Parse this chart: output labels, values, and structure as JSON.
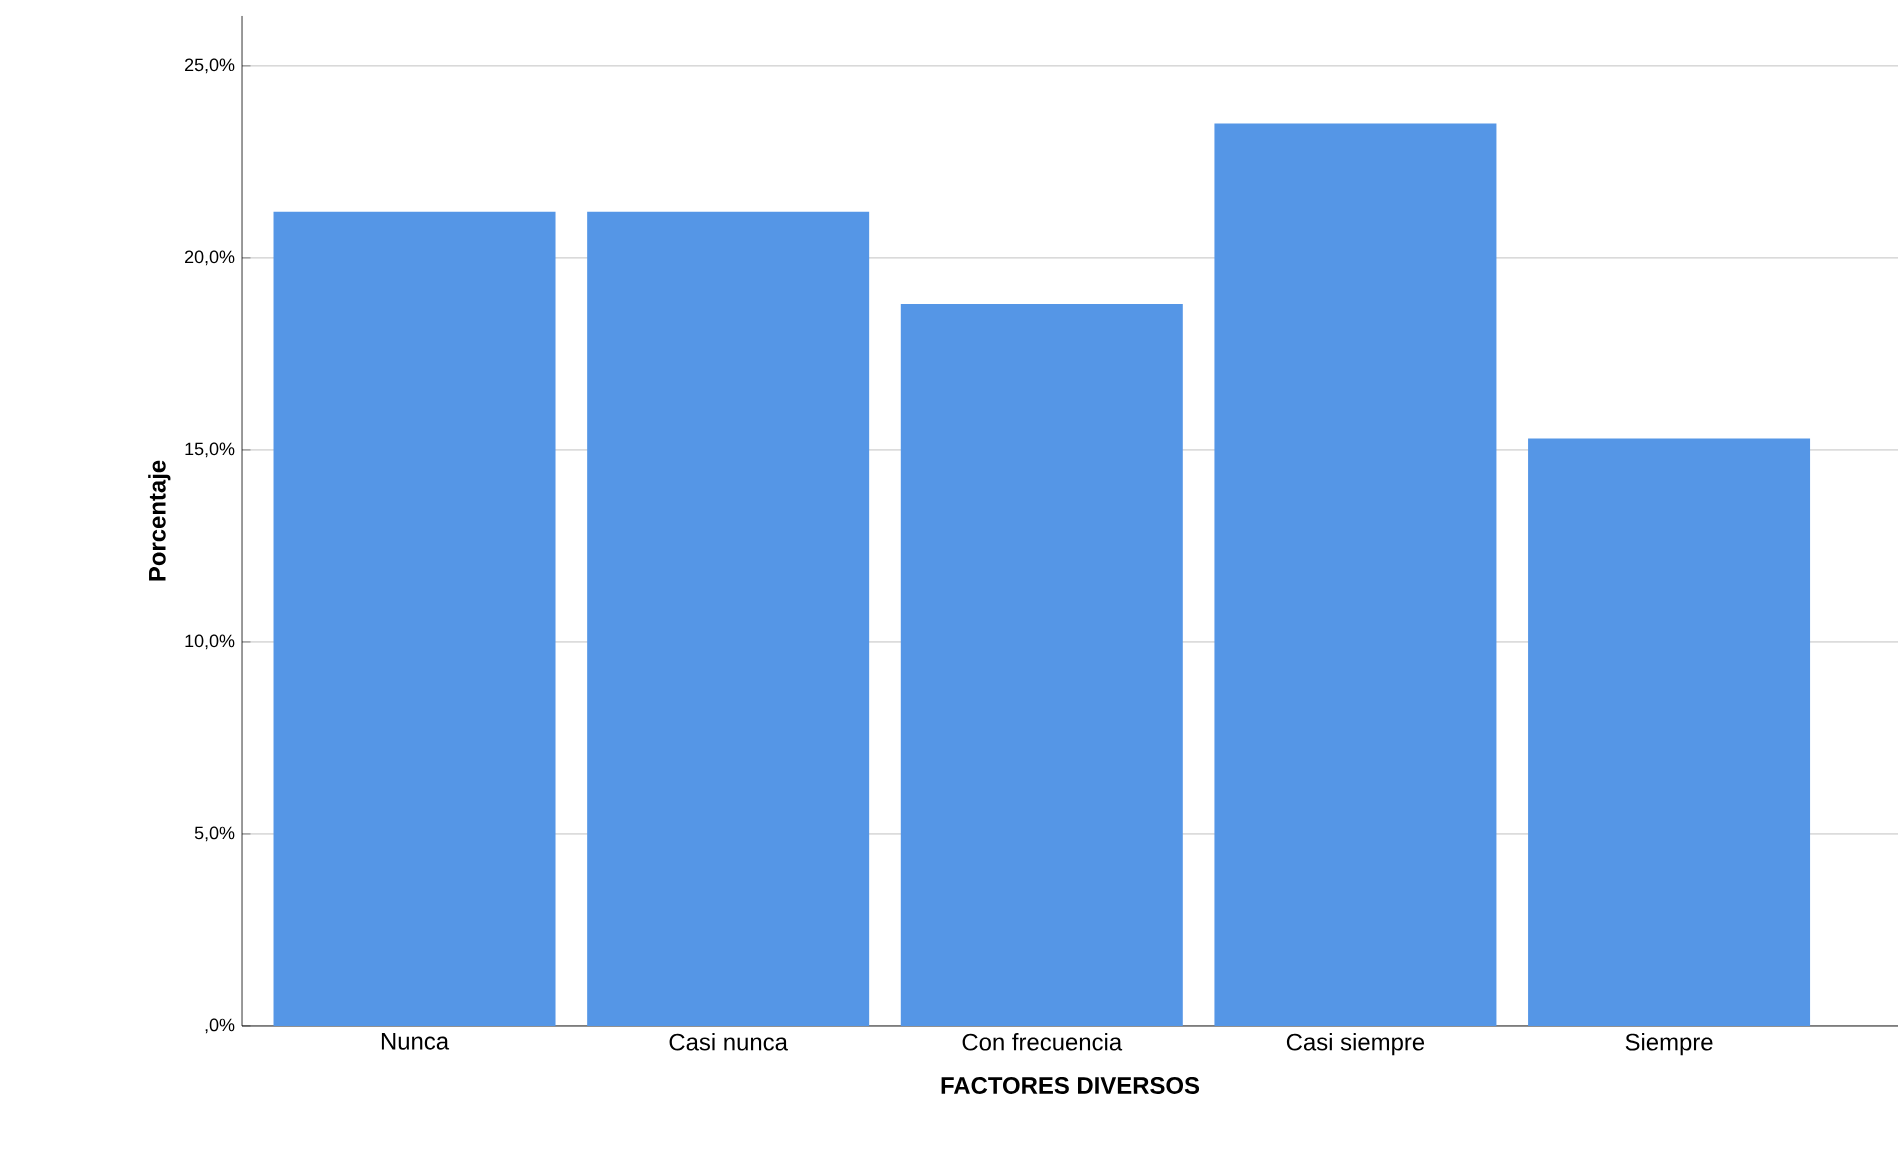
{
  "chart_data": {
    "type": "bar",
    "xlabel": "FACTORES DIVERSOS",
    "ylabel": "Porcentaje",
    "categories": [
      "Nunca",
      "Casi nunca",
      "Con frecuencia",
      "Casi siempre",
      "Siempre"
    ],
    "values": [
      21.2,
      21.2,
      18.8,
      23.5,
      15.3
    ],
    "color": "#5596e6",
    "ylim": [
      0,
      26.3
    ],
    "yticks": [
      {
        "value": 0,
        "label": ",0%"
      },
      {
        "value": 5,
        "label": "5,0%"
      },
      {
        "value": 10,
        "label": "10,0%"
      },
      {
        "value": 15,
        "label": "15,0%"
      },
      {
        "value": 20,
        "label": "20,0%"
      },
      {
        "value": 25,
        "label": "25,0%"
      }
    ],
    "grid": "y"
  }
}
